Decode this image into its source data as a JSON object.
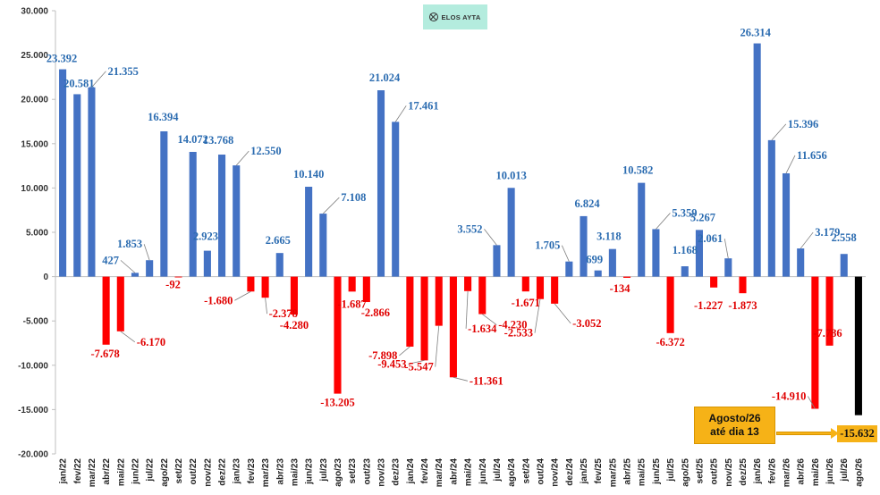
{
  "logo": {
    "icon": "crossed-circle-icon",
    "text": "ELOS AYTA"
  },
  "annotation": {
    "line1": "Agosto/26",
    "line2": "até dia 13"
  },
  "chart_data": {
    "type": "bar",
    "title": "",
    "xlabel": "",
    "ylabel": "",
    "ylim": [
      -20000,
      30000
    ],
    "yticks": [
      30000,
      25000,
      20000,
      15000,
      10000,
      5000,
      0,
      -5000,
      -10000,
      -15000,
      -20000
    ],
    "ytick_labels": [
      "30.000",
      "25.000",
      "20.000",
      "15.000",
      "10.000",
      "5.000",
      "0",
      "-5.000",
      "-10.000",
      "-15.000",
      "-20.000"
    ],
    "grid": false,
    "legend": "none",
    "colors": {
      "positive": "#4472c4",
      "negative": "#ff0000",
      "partial": "#000000",
      "positive_label": "#2a6bb0",
      "negative_label": "#e00000"
    },
    "categories": [
      "jan/22",
      "fev/22",
      "mar/22",
      "abr/22",
      "mai/22",
      "jun/22",
      "jul/22",
      "ago/22",
      "set/22",
      "out/22",
      "nov/22",
      "dez/22",
      "jan/23",
      "fev/23",
      "mar/23",
      "abr/23",
      "mai/23",
      "jun/23",
      "jul/23",
      "ago/23",
      "set/23",
      "out/23",
      "nov/23",
      "dez/23",
      "jan/24",
      "fev/24",
      "mar/24",
      "abr/24",
      "mai/24",
      "jun/24",
      "jul/24",
      "ago/24",
      "set/24",
      "out/24",
      "nov/24",
      "dez/24",
      "jan/25",
      "fev/25",
      "mar/25",
      "abr/25",
      "mai/25",
      "jun/25",
      "jul/25",
      "ago/25",
      "set/25",
      "out/25",
      "nov/25",
      "dez/25",
      "jan/26",
      "fev/26",
      "mar/26",
      "abr/26",
      "mai/26",
      "jun/26",
      "jul/26",
      "ago/26"
    ],
    "values": [
      23392,
      20581,
      21355,
      -7678,
      -6170,
      427,
      1853,
      16394,
      -92,
      14072,
      2923,
      13768,
      12550,
      -1680,
      -2378,
      2665,
      -4280,
      10140,
      7108,
      -13205,
      -1687,
      -2866,
      21024,
      17461,
      -7898,
      -9453,
      -5547,
      -11361,
      -1634,
      -4230,
      3552,
      10013,
      -1671,
      -2533,
      -3052,
      1705,
      6824,
      699,
      3118,
      -134,
      10582,
      5359,
      -6372,
      1168,
      5267,
      -1227,
      2061,
      -1873,
      26314,
      15396,
      11656,
      3179,
      -14910,
      -7786,
      2558,
      -15632
    ],
    "labels": [
      "23.392",
      "20.581",
      "21.355",
      "-7.678",
      "-6.170",
      "427",
      "1.853",
      "16.394",
      "-92",
      "14.072",
      "2.923",
      "13.768",
      "12.550",
      "-1.680",
      "-2.378",
      "2.665",
      "-4.280",
      "10.140",
      "7.108",
      "-13.205",
      "-1.687",
      "-2.866",
      "21.024",
      "17.461",
      "-7.898",
      "-9.453",
      "-5.547",
      "-11.361",
      "-1.634",
      "-4.230",
      "3.552",
      "10.013",
      "-1.671",
      "-2.533",
      "-3.052",
      "1.705",
      "6.824",
      "699",
      "3.118",
      "-134",
      "10.582",
      "5.359",
      "-6.372",
      "1.168",
      "5.267",
      "-1.227",
      "2.061",
      "-1.873",
      "26.314",
      "15.396",
      "11.656",
      "3.179",
      "-14.910",
      "-7.786",
      "2.558",
      "-15.632"
    ],
    "partial_index": 55
  }
}
